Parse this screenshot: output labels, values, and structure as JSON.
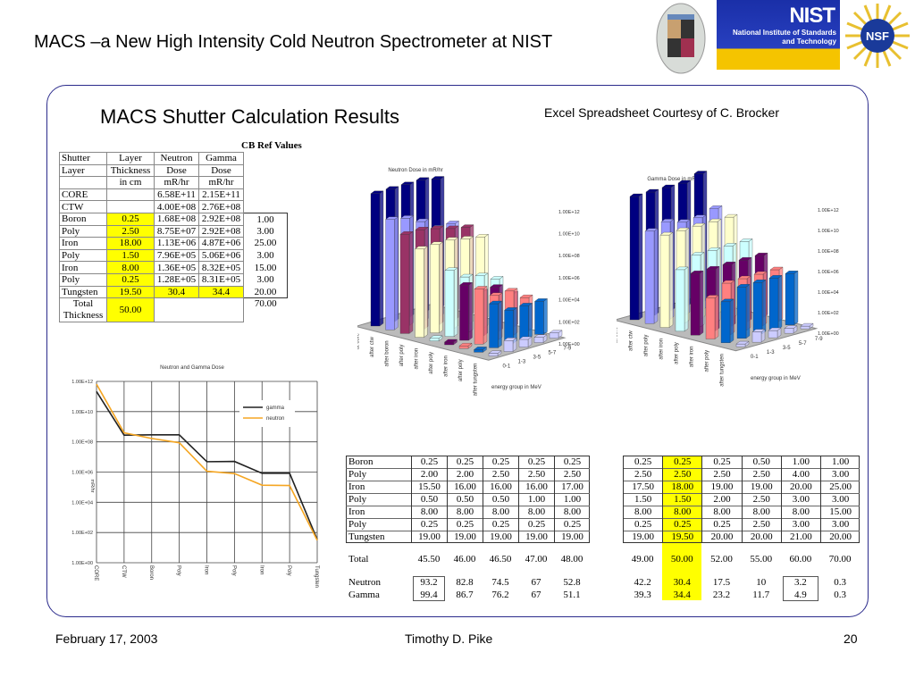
{
  "slide": {
    "title": "MACS –a New High Intensity Cold Neutron Spectrometer at NIST",
    "subtitle": "MACS Shutter Calculation Results",
    "credit": "Excel Spreadsheet Courtesy of C. Brocker",
    "footer_date": "February 17, 2003",
    "footer_author": "Timothy D. Pike",
    "page_number": "20",
    "frame_color": "#2b2b8c"
  },
  "logos": {
    "nist": "NIST",
    "nist_full": "National Institute of Standards and Technology",
    "nsf": "NSF"
  },
  "ref_table": {
    "ref_header": "CB Ref Values",
    "rows": [
      [
        "Shutter",
        "Layer",
        "Neutron",
        "Gamma",
        ""
      ],
      [
        "Layer",
        "Thickness",
        "Dose",
        "Dose",
        ""
      ],
      [
        "",
        "in cm",
        "mR/hr",
        "mR/hr",
        ""
      ],
      [
        "CORE",
        "",
        "6.58E+11",
        "2.15E+11",
        ""
      ],
      [
        "CTW",
        "",
        "4.00E+08",
        "2.76E+08",
        ""
      ],
      [
        "Boron",
        "0.25",
        "1.68E+08",
        "2.92E+08",
        "1.00"
      ],
      [
        "Poly",
        "2.50",
        "8.75E+07",
        "2.92E+08",
        "3.00"
      ],
      [
        "Iron",
        "18.00",
        "1.13E+06",
        "4.87E+06",
        "25.00"
      ],
      [
        "Poly",
        "1.50",
        "7.96E+05",
        "5.06E+06",
        "3.00"
      ],
      [
        "Iron",
        "8.00",
        "1.36E+05",
        "8.32E+05",
        "15.00"
      ],
      [
        "Poly",
        "0.25",
        "1.28E+05",
        "8.31E+05",
        "3.00"
      ],
      [
        "Tungsten",
        "19.50",
        "30.4",
        "34.4",
        "20.00"
      ]
    ],
    "total_label": "Total Thickness",
    "total_value": "50.00",
    "ref_total": "70.00",
    "highlight": "#ffff00"
  },
  "option_tables": {
    "layers": [
      "Boron",
      "Poly",
      "Iron",
      "Poly",
      "Iron",
      "Poly",
      "Tungsten"
    ],
    "total_label": "Total",
    "neutron_label": "Neutron",
    "gamma_label": "Gamma",
    "table_a": {
      "columns": [
        [
          "0.25",
          "2.00",
          "15.50",
          "0.50",
          "8.00",
          "0.25",
          "19.00"
        ],
        [
          "0.25",
          "2.00",
          "16.00",
          "0.50",
          "8.00",
          "0.25",
          "19.00"
        ],
        [
          "0.25",
          "2.50",
          "16.00",
          "0.50",
          "8.00",
          "0.25",
          "19.00"
        ],
        [
          "0.25",
          "2.50",
          "16.00",
          "1.00",
          "8.00",
          "0.25",
          "19.00"
        ],
        [
          "0.25",
          "2.50",
          "17.00",
          "1.00",
          "8.00",
          "0.25",
          "19.00"
        ]
      ],
      "totals": [
        "45.50",
        "46.00",
        "46.50",
        "47.00",
        "48.00"
      ],
      "neutron": [
        "93.2",
        "82.8",
        "74.5",
        "67",
        "52.8"
      ],
      "gamma": [
        "99.4",
        "86.7",
        "76.2",
        "67",
        "51.1"
      ]
    },
    "table_b": {
      "columns": [
        [
          "0.25",
          "2.50",
          "17.50",
          "1.50",
          "8.00",
          "0.25",
          "19.00"
        ],
        [
          "0.25",
          "2.50",
          "18.00",
          "1.50",
          "8.00",
          "0.25",
          "19.50"
        ],
        [
          "0.25",
          "2.50",
          "19.00",
          "2.00",
          "8.00",
          "0.25",
          "20.00"
        ],
        [
          "0.50",
          "2.50",
          "19.00",
          "2.50",
          "8.00",
          "2.50",
          "20.00"
        ],
        [
          "1.00",
          "4.00",
          "20.00",
          "3.00",
          "8.00",
          "3.00",
          "21.00"
        ],
        [
          "1.00",
          "3.00",
          "25.00",
          "3.00",
          "15.00",
          "3.00",
          "20.00"
        ]
      ],
      "totals": [
        "49.00",
        "50.00",
        "52.00",
        "55.00",
        "60.00",
        "70.00"
      ],
      "neutron": [
        "42.2",
        "30.4",
        "17.5",
        "10",
        "3.2",
        "0.3"
      ],
      "gamma": [
        "39.3",
        "34.4",
        "23.2",
        "11.7",
        "4.9",
        "0.3"
      ],
      "highlight_column": 2
    }
  },
  "chart_data": [
    {
      "type": "line",
      "title": "Neutron and Gamma Dose",
      "ylabel": "mR/hr",
      "yscale": "log",
      "ylim": [
        1,
        1000000000000.0
      ],
      "yticks": [
        "1.00E+00",
        "1.00E+02",
        "1.00E+04",
        "1.00E+06",
        "1.00E+08",
        "1.00E+10",
        "1.00E+12"
      ],
      "categories": [
        "CORE",
        "CTW",
        "Boron",
        "Poly",
        "Iron",
        "Poly",
        "Iron",
        "Poly",
        "Tungsten"
      ],
      "grid": true,
      "legend": "top-right",
      "series": [
        {
          "name": "gamma",
          "color": "#222222",
          "values": [
            215000000000.0,
            276000000.0,
            292000000.0,
            292000000.0,
            4870000.0,
            5060000.0,
            832000.0,
            831000.0,
            34.4
          ]
        },
        {
          "name": "neutron",
          "color": "#f5a623",
          "values": [
            658000000000.0,
            400000000.0,
            168000000.0,
            87500000.0,
            1130000.0,
            796000.0,
            136000.0,
            128000.0,
            30.4
          ]
        }
      ]
    },
    {
      "type": "bar3d",
      "title": "Neutron Dose in mR/hr",
      "xlabel": "energy group in MeV",
      "yscale": "log",
      "ylim": [
        1,
        1000000000000.0
      ],
      "yticks": [
        "1.00E+00",
        "1.00E+02",
        "1.00E+04",
        "1.00E+06",
        "1.00E+08",
        "1.00E+10",
        "1.00E+12"
      ],
      "energy_groups": [
        "0-1",
        "1-3",
        "3-5",
        "5-7",
        "7-9"
      ],
      "layers": [
        "at core",
        "after ctw",
        "after boron",
        "after poly",
        "after iron",
        "after poly",
        "after iron",
        "after poly",
        "after tungsten"
      ],
      "colors": [
        "#000080",
        "#9999ff",
        "#993366",
        "#ffffcc",
        "#ccffff",
        "#660066",
        "#ff8080",
        "#0066cc",
        "#ccccff"
      ],
      "values": [
        [
          1000000000000.0,
          1000000000000.0,
          1000000000000.0,
          1000000000000.0,
          500000000000.0
        ],
        [
          10000000000.0,
          5000000000.0,
          1000000000.0,
          100000000.0,
          100000000.0
        ],
        [
          1000000000.0,
          1000000000.0,
          500000000.0,
          200000000.0,
          100000000.0
        ],
        [
          100000000.0,
          100000000.0,
          100000000.0,
          50000000.0,
          30000000.0
        ],
        [
          1,
          1000000.0,
          100000.0,
          50000.0,
          10000.0
        ],
        [
          1,
          100000.0,
          10000.0,
          10000.0,
          1000.0
        ],
        [
          1,
          100000.0,
          10000.0,
          10000.0,
          1000.0
        ],
        [
          1,
          10000.0,
          1000.0,
          1000.0,
          1000.0
        ],
        [
          1,
          10,
          5,
          3,
          3
        ]
      ]
    },
    {
      "type": "bar3d",
      "title": "Gamma Dose in mR/hr",
      "xlabel": "energy group in MeV",
      "yscale": "log",
      "ylim": [
        1,
        1000000000000.0
      ],
      "yticks": [
        "1.00E+00",
        "1.00E+02",
        "1.00E+04",
        "1.00E+06",
        "1.00E+08",
        "1.00E+10",
        "1.00E+12"
      ],
      "energy_groups": [
        "0-1",
        "1-3",
        "3-5",
        "5-7",
        "7-9"
      ],
      "layers": [
        "at core",
        "after ctw",
        "after poly",
        "after iron",
        "after poly",
        "after iron",
        "after poly",
        "after tungsten"
      ],
      "colors": [
        "#000080",
        "#9999ff",
        "#ffffcc",
        "#ccffff",
        "#660066",
        "#ff8080",
        "#0066cc",
        "#ccccff"
      ],
      "values": [
        [
          1000000000000.0,
          1000000000000.0,
          1000000000000.0,
          1000000000000.0,
          3000000000000.0
        ],
        [
          1000000000.0,
          3000000000.0,
          1000000000.0,
          1000000000.0,
          3000000000.0
        ],
        [
          1000000000.0,
          1000000000.0,
          1000000000.0,
          1000000000.0,
          1000000000.0
        ],
        [
          1000000.0,
          10000000.0,
          10000000.0,
          10000000.0,
          10000000.0
        ],
        [
          1000000.0,
          1000000.0,
          1000000.0,
          1000000.0,
          1000000.0
        ],
        [
          10000.0,
          100000.0,
          100000.0,
          100000.0,
          100000.0
        ],
        [
          10000.0,
          100000.0,
          100000.0,
          100000.0,
          100000.0
        ],
        [
          1,
          10,
          5,
          3,
          1
        ]
      ]
    }
  ]
}
